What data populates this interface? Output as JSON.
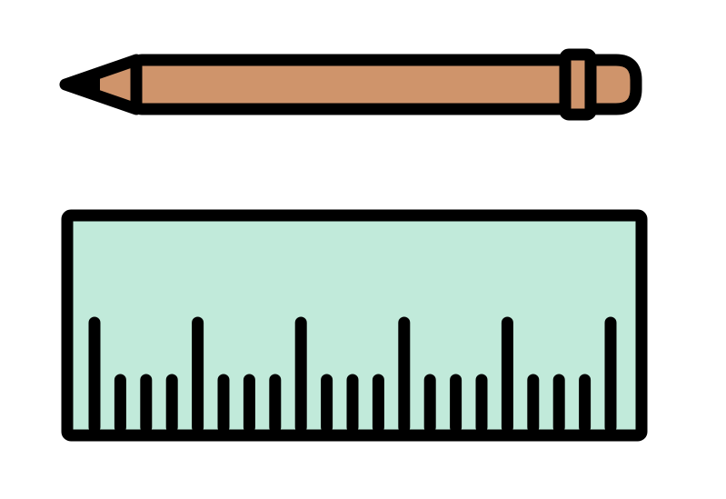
{
  "illustration": {
    "items": [
      {
        "name": "pencil-icon"
      },
      {
        "name": "ruler-icon"
      }
    ],
    "colors": {
      "outline": "#000000",
      "pencil_body": "#cf946b",
      "ruler_body": "#c1eada",
      "background": "#ffffff"
    },
    "ruler": {
      "tick_pattern": [
        "long",
        "short",
        "short",
        "short",
        "long",
        "short",
        "short",
        "short",
        "long",
        "short",
        "short",
        "short",
        "long",
        "short",
        "short",
        "short",
        "long",
        "short",
        "short",
        "short",
        "long"
      ]
    }
  }
}
